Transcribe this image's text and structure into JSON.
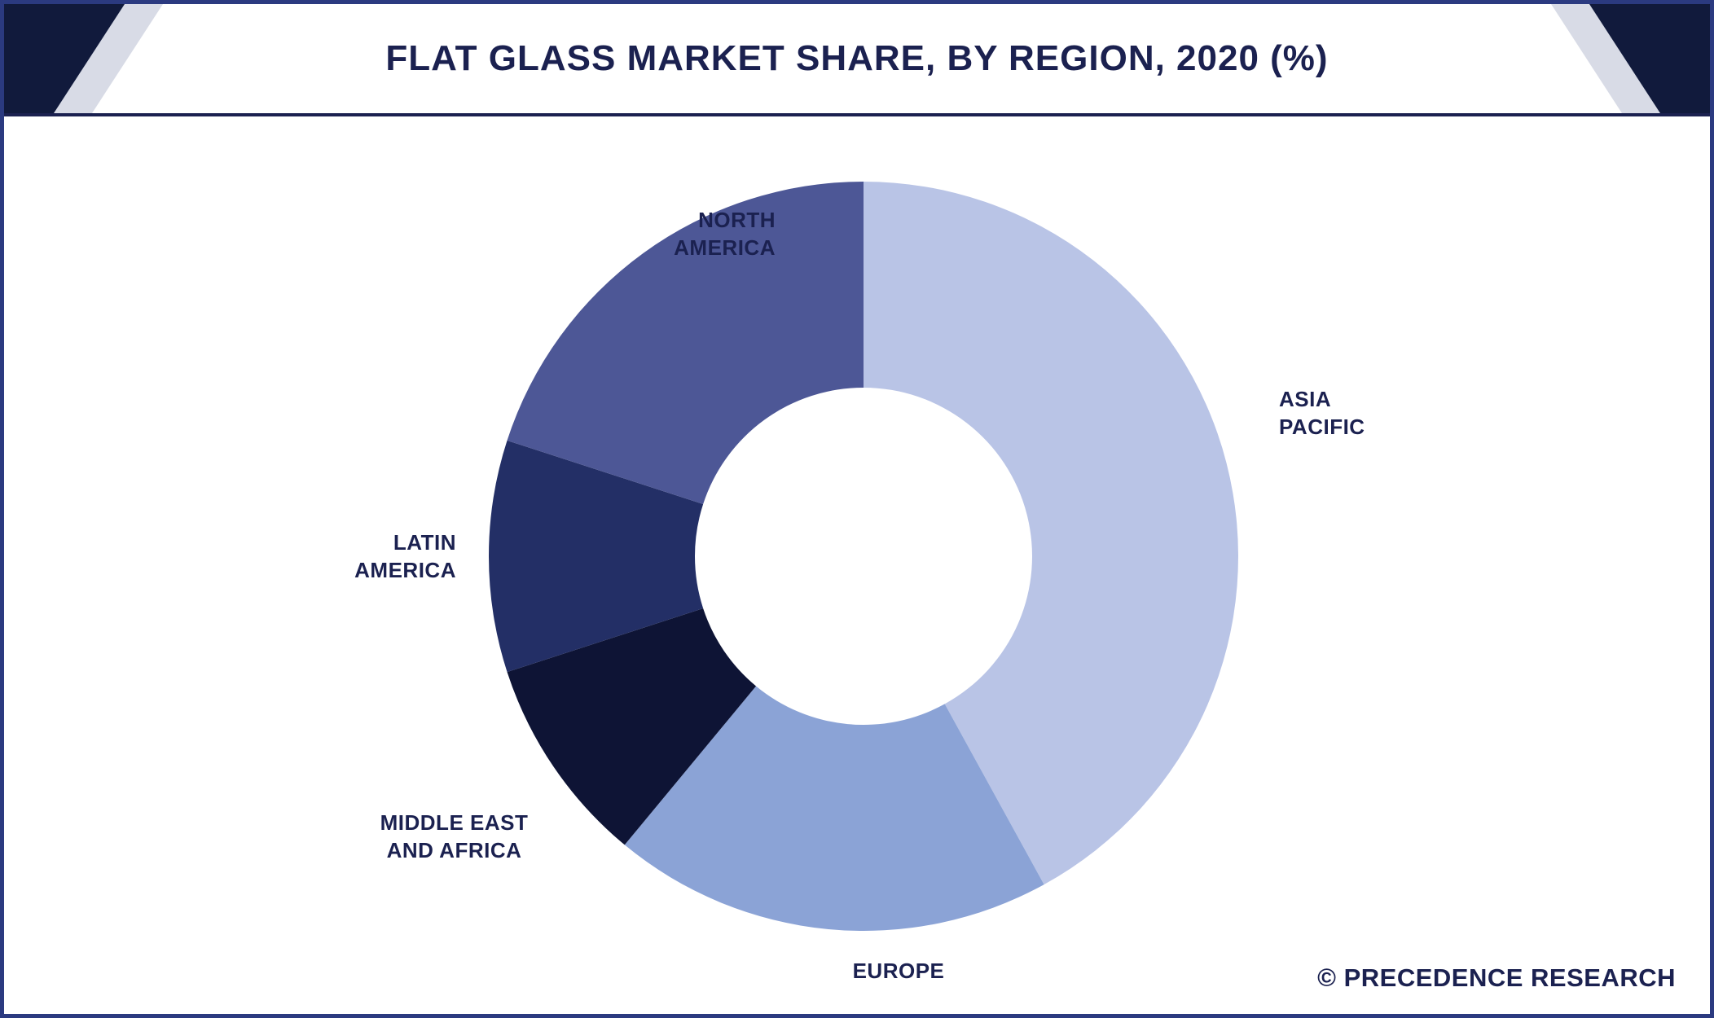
{
  "header": {
    "title": "FLAT GLASS MARKET SHARE, BY REGION, 2020 (%)"
  },
  "footer": {
    "brand": "© PRECEDENCE RESEARCH"
  },
  "chart_data": {
    "type": "pie",
    "subtype": "donut",
    "title": "FLAT GLASS MARKET SHARE, BY REGION, 2020 (%)",
    "unit": "%",
    "categories": [
      "ASIA PACIFIC",
      "EUROPE",
      "MIDDLE EAST AND AFRICA",
      "LATIN AMERICA",
      "NORTH AMERICA"
    ],
    "values": [
      42,
      19,
      9,
      10,
      20
    ],
    "colors": [
      "#b9c4e6",
      "#8ba3d6",
      "#0e1435",
      "#232f66",
      "#4d5796"
    ],
    "labels": [
      "ASIA\nPACIFIC",
      "EUROPE",
      "MIDDLE EAST\nAND AFRICA",
      "LATIN\nAMERICA",
      "NORTH\nAMERICA"
    ],
    "start_angle_deg": 0,
    "direction": "clockwise",
    "donut_hole_ratio": 0.45,
    "legend_position": "none",
    "accent_color": "#1b2150",
    "frame_color": "#2b3a80",
    "corner_accent_colors": [
      "#111a3c",
      "#d8dbe6"
    ]
  }
}
